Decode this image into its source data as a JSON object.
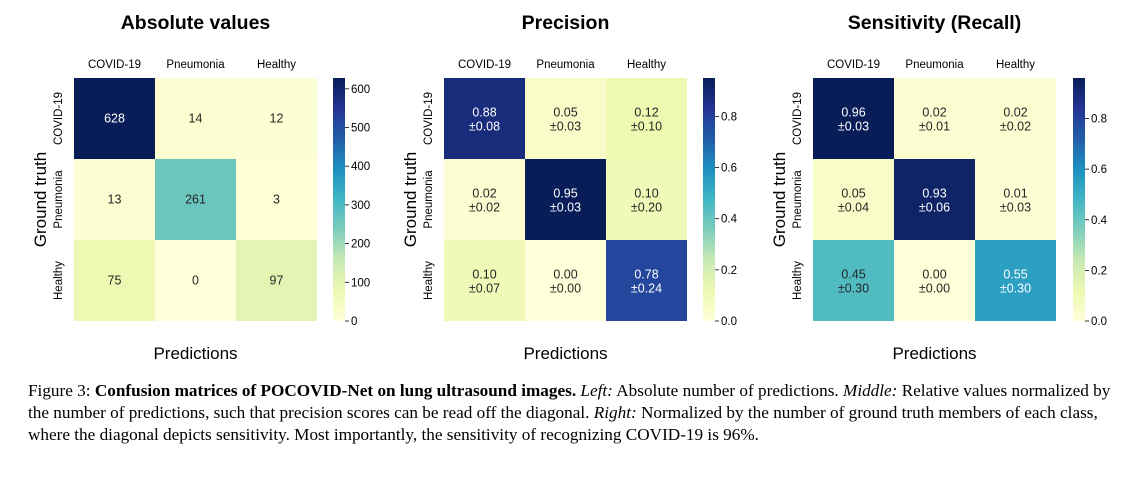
{
  "chart_data": [
    {
      "type": "heatmap",
      "title": "Absolute values",
      "xlabel": "Predictions",
      "ylabel": "Ground truth",
      "x_categories": [
        "COVID-19",
        "Pneumonia",
        "Healthy"
      ],
      "y_categories": [
        "COVID-19",
        "Pneumonia",
        "Healthy"
      ],
      "values": [
        [
          628,
          14,
          12
        ],
        [
          13,
          261,
          3
        ],
        [
          75,
          0,
          97
        ]
      ],
      "cell_labels": [
        [
          "628",
          "14",
          "12"
        ],
        [
          "13",
          "261",
          "3"
        ],
        [
          "75",
          "0",
          "97"
        ]
      ],
      "colorbar": {
        "vmin": 0,
        "vmax": 628,
        "ticks": [
          0,
          100,
          200,
          300,
          400,
          500,
          600
        ],
        "tick_labels": [
          "0",
          "100",
          "200",
          "300",
          "400",
          "500",
          "600"
        ]
      },
      "colormap": "YlGnBu"
    },
    {
      "type": "heatmap",
      "title": "Precision",
      "xlabel": "Predictions",
      "ylabel": "Ground truth",
      "x_categories": [
        "COVID-19",
        "Pneumonia",
        "Healthy"
      ],
      "y_categories": [
        "COVID-19",
        "Pneumonia",
        "Healthy"
      ],
      "values": [
        [
          0.88,
          0.05,
          0.12
        ],
        [
          0.02,
          0.95,
          0.1
        ],
        [
          0.1,
          0.0,
          0.78
        ]
      ],
      "std": [
        [
          0.08,
          0.03,
          0.1
        ],
        [
          0.02,
          0.03,
          0.2
        ],
        [
          0.07,
          0.0,
          0.24
        ]
      ],
      "cell_labels": [
        [
          "0.88",
          "0.05",
          "0.12"
        ],
        [
          "0.02",
          "0.95",
          "0.10"
        ],
        [
          "0.10",
          "0.00",
          "0.78"
        ]
      ],
      "cell_std_labels": [
        [
          "±0.08",
          "±0.03",
          "±0.10"
        ],
        [
          "±0.02",
          "±0.03",
          "±0.20"
        ],
        [
          "±0.07",
          "±0.00",
          "±0.24"
        ]
      ],
      "colorbar": {
        "vmin": 0,
        "vmax": 0.95,
        "ticks": [
          0,
          0.2,
          0.4,
          0.6,
          0.8
        ],
        "tick_labels": [
          "0.0",
          "0.2",
          "0.4",
          "0.6",
          "0.8"
        ]
      },
      "colormap": "YlGnBu"
    },
    {
      "type": "heatmap",
      "title": "Sensitivity (Recall)",
      "xlabel": "Predictions",
      "ylabel": "Ground truth",
      "x_categories": [
        "COVID-19",
        "Pneumonia",
        "Healthy"
      ],
      "y_categories": [
        "COVID-19",
        "Pneumonia",
        "Healthy"
      ],
      "values": [
        [
          0.96,
          0.02,
          0.02
        ],
        [
          0.05,
          0.93,
          0.01
        ],
        [
          0.45,
          0.0,
          0.55
        ]
      ],
      "std": [
        [
          0.03,
          0.01,
          0.02
        ],
        [
          0.04,
          0.06,
          0.03
        ],
        [
          0.3,
          0.0,
          0.3
        ]
      ],
      "cell_labels": [
        [
          "0.96",
          "0.02",
          "0.02"
        ],
        [
          "0.05",
          "0.93",
          "0.01"
        ],
        [
          "0.45",
          "0.00",
          "0.55"
        ]
      ],
      "cell_std_labels": [
        [
          "±0.03",
          "±0.01",
          "±0.02"
        ],
        [
          "±0.04",
          "±0.06",
          "±0.03"
        ],
        [
          "±0.30",
          "±0.00",
          "±0.30"
        ]
      ],
      "colorbar": {
        "vmin": 0,
        "vmax": 0.96,
        "ticks": [
          0,
          0.2,
          0.4,
          0.6,
          0.8
        ],
        "tick_labels": [
          "0.0",
          "0.2",
          "0.4",
          "0.6",
          "0.8"
        ]
      },
      "colormap": "YlGnBu"
    }
  ],
  "caption": {
    "figure_label": "Figure 3:",
    "bold_title": "Confusion matrices of POCOVID-Net on lung ultrasound images.",
    "left_label": "Left:",
    "left_text": "Absolute number of predictions.",
    "middle_label": "Middle:",
    "middle_text": "Relative values normalized by the number of predictions, such that precision scores can be read off the diagonal.",
    "right_label": "Right:",
    "right_text": "Normalized by the number of ground truth members of each class, where the diagonal depicts sensitivity. Most importantly, the sensitivity of recognizing COVID-19 is 96%."
  }
}
